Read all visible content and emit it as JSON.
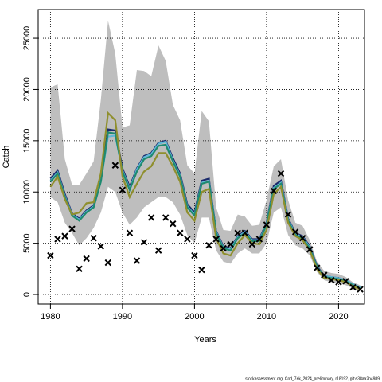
{
  "chart_data": {
    "type": "line",
    "x_label": "Years",
    "y_label": "Catch",
    "footnote": "stockassessment.org, Cod_7ek_2024_preliminary, r18192, git:e38aa2b4989",
    "x": [
      1980,
      1981,
      1982,
      1983,
      1984,
      1985,
      1986,
      1987,
      1988,
      1989,
      1990,
      1991,
      1992,
      1993,
      1994,
      1995,
      1996,
      1997,
      1998,
      1999,
      2000,
      2001,
      2002,
      2003,
      2004,
      2005,
      2006,
      2007,
      2008,
      2009,
      2010,
      2011,
      2012,
      2013,
      2014,
      2015,
      2016,
      2017,
      2018,
      2019,
      2020,
      2021,
      2022,
      2023
    ],
    "xlim": [
      1978.3,
      2023.6
    ],
    "ylim": [
      -930,
      27800
    ],
    "xticks": [
      1980,
      1990,
      2000,
      2010,
      2020
    ],
    "yticks": [
      0,
      5000,
      10000,
      15000,
      20000,
      25000
    ],
    "grid": true,
    "band": {
      "color": "#bebebe",
      "upper": [
        20200,
        20500,
        13200,
        10700,
        10700,
        11800,
        13000,
        19000,
        26700,
        23500,
        16300,
        16500,
        21900,
        21800,
        21300,
        24300,
        22800,
        18500,
        17000,
        12600,
        11800,
        17900,
        16900,
        8500,
        6300,
        6200,
        7800,
        7600,
        6700,
        6800,
        9200,
        12500,
        13200,
        9200,
        7000,
        6700,
        5300,
        3200,
        2300,
        2100,
        2000,
        1700,
        1200,
        900
      ],
      "lower": [
        9500,
        9000,
        7000,
        6000,
        4800,
        5500,
        6500,
        8000,
        10500,
        10000,
        8000,
        6800,
        7500,
        8500,
        9000,
        9500,
        9500,
        9000,
        7800,
        5800,
        5000,
        7500,
        7500,
        4300,
        3200,
        3000,
        4000,
        4500,
        4000,
        4000,
        5000,
        8000,
        8500,
        5800,
        4800,
        4500,
        3800,
        2200,
        1400,
        1200,
        1100,
        900,
        600,
        400
      ]
    },
    "series": [
      {
        "color": "#1b2a6b",
        "values": [
          11300,
          12100,
          9800,
          7900,
          7400,
          8200,
          8700,
          11300,
          16100,
          16000,
          12300,
          10500,
          12300,
          13500,
          13800,
          14800,
          15000,
          13300,
          11800,
          8800,
          8000,
          11100,
          11300,
          6200,
          4700,
          4500,
          5700,
          6200,
          5400,
          5400,
          7000,
          10600,
          11100,
          7400,
          6000,
          5700,
          4700,
          2800,
          1800,
          1700,
          1600,
          1400,
          1000,
          700
        ]
      },
      {
        "color": "#5fb8d8",
        "values": [
          11100,
          11900,
          9600,
          7800,
          7300,
          8100,
          8600,
          11100,
          15400,
          15500,
          12100,
          10300,
          12200,
          13400,
          13700,
          14700,
          14900,
          13100,
          11600,
          8600,
          7800,
          10900,
          11100,
          6100,
          4600,
          4400,
          5600,
          6100,
          5300,
          5300,
          6900,
          10400,
          10900,
          7300,
          5900,
          5600,
          4600,
          2700,
          1800,
          1700,
          1600,
          1400,
          1000,
          700
        ]
      },
      {
        "color": "#1f8a70",
        "values": [
          11000,
          11800,
          9500,
          7700,
          7200,
          8000,
          8500,
          11000,
          15800,
          15700,
          12000,
          10200,
          12000,
          13200,
          13500,
          14500,
          14600,
          13000,
          11500,
          8500,
          7700,
          10800,
          11000,
          6000,
          4500,
          4300,
          5500,
          6000,
          5200,
          5200,
          6800,
          10300,
          10800,
          7200,
          5800,
          5500,
          4500,
          2700,
          1700,
          1600,
          1500,
          1300,
          900,
          600
        ]
      },
      {
        "color": "#8f8f2e",
        "values": [
          10500,
          11500,
          9300,
          7800,
          8000,
          8900,
          9000,
          11800,
          17700,
          17000,
          11500,
          9500,
          10800,
          12000,
          12500,
          13800,
          13800,
          12500,
          11000,
          8000,
          7200,
          10000,
          10300,
          5500,
          4000,
          3800,
          5000,
          5800,
          5000,
          4900,
          6300,
          9800,
          10500,
          7000,
          5700,
          5300,
          4300,
          2500,
          1600,
          1500,
          1400,
          1200,
          800,
          500
        ]
      }
    ],
    "observed": {
      "color": "#000000",
      "values": [
        3800,
        5400,
        5700,
        6400,
        2500,
        3500,
        5500,
        4700,
        3100,
        12600,
        10200,
        6000,
        3300,
        5100,
        7500,
        4300,
        7500,
        6900,
        6000,
        5400,
        3800,
        2400,
        4800,
        5400,
        4500,
        4900,
        6000,
        6000,
        4900,
        5400,
        6800,
        10100,
        11800,
        7800,
        6100,
        5500,
        4400,
        2600,
        1900,
        1400,
        1200,
        1300,
        700,
        500
      ]
    }
  }
}
